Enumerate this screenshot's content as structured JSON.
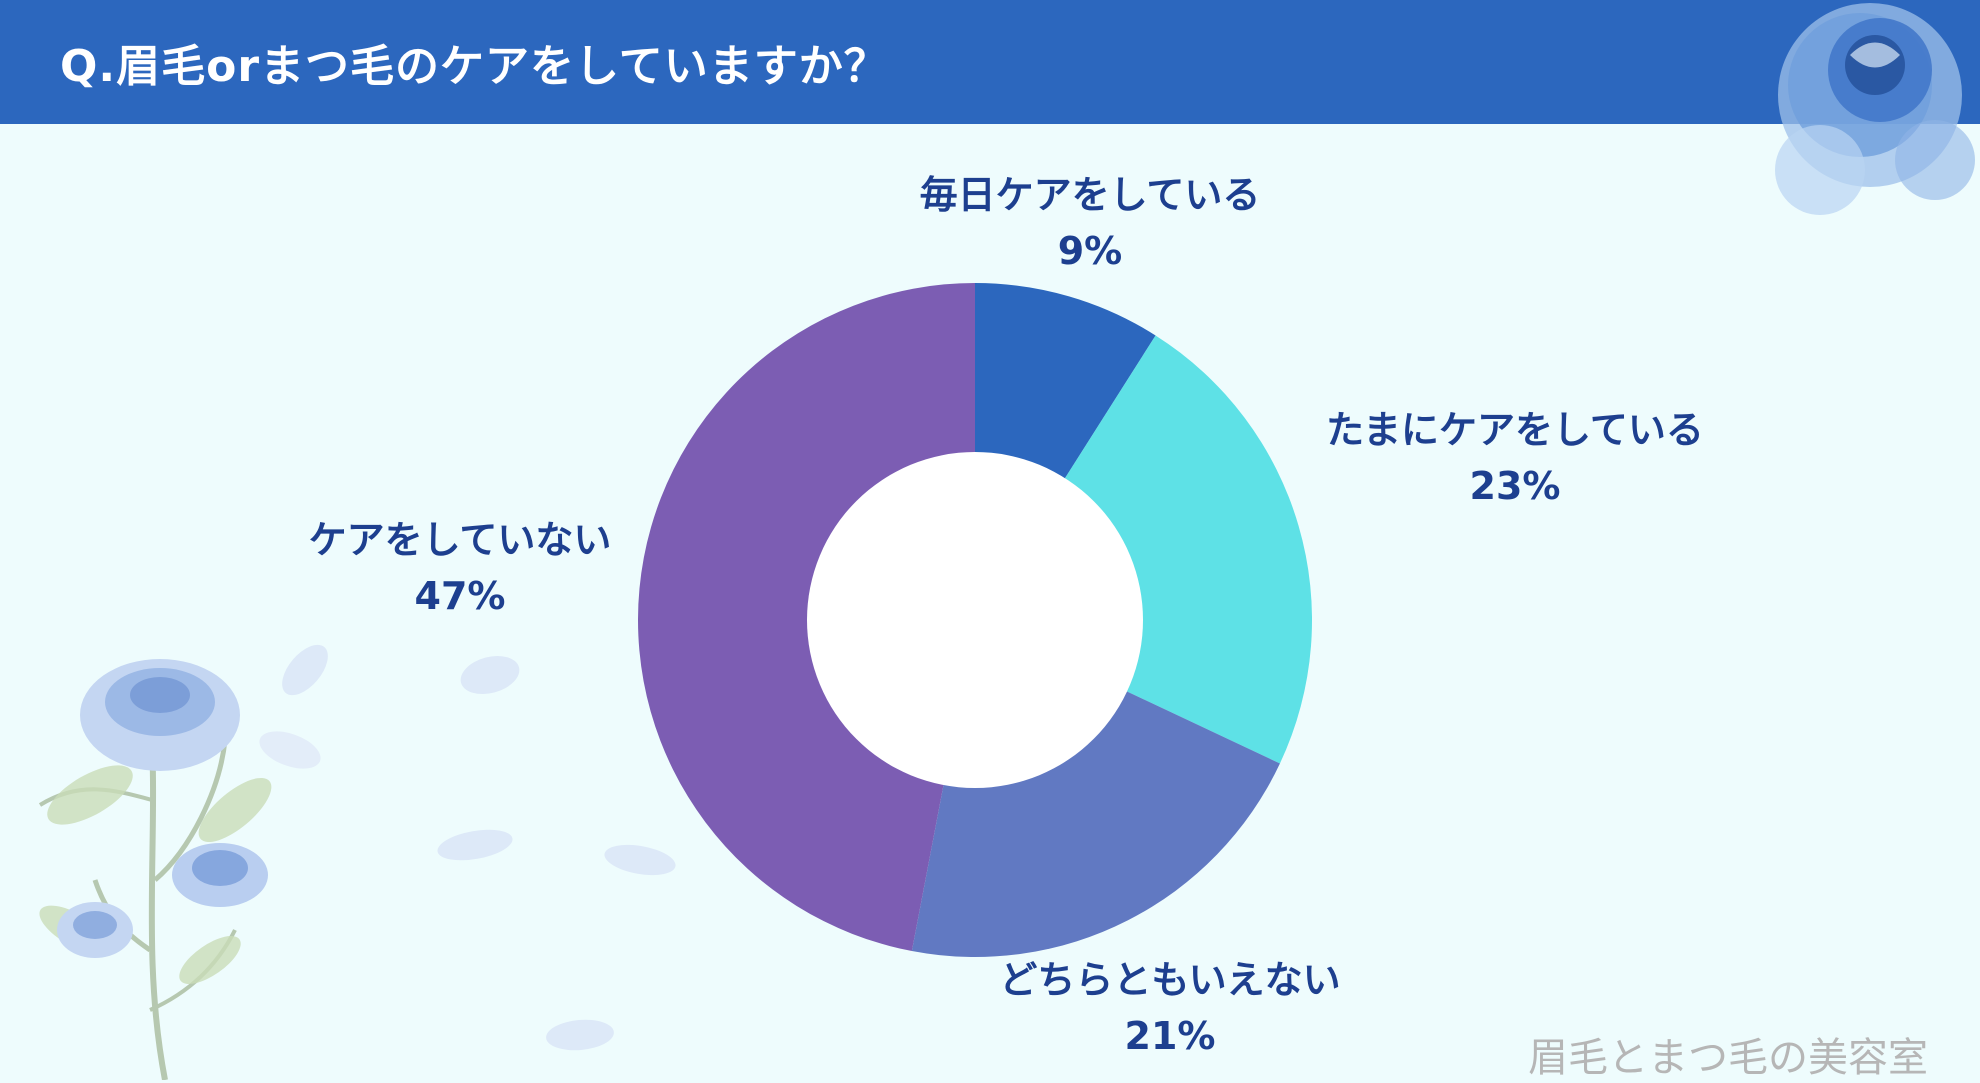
{
  "header": {
    "title": "Q.眉毛orまつ毛のケアをしていますか？"
  },
  "colors": {
    "title_bar": "#2c67be",
    "background": "#eefcfd",
    "label_text": "#1d3f8f"
  },
  "chart_data": {
    "type": "pie",
    "variant": "donut",
    "title": "Q.眉毛orまつ毛のケアをしていますか？",
    "categories": [
      "毎日ケアをしている",
      "たまにケアをしている",
      "どちらともいえない",
      "ケアをしていない"
    ],
    "values": [
      9,
      23,
      21,
      47
    ],
    "value_labels": [
      "9%",
      "23%",
      "21%",
      "47%"
    ],
    "unit": "%",
    "colors": [
      "#2c67be",
      "#5ee1e6",
      "#6179c2",
      "#7c5db3"
    ],
    "legend": "none",
    "labels": "outside"
  },
  "watermark": "眉毛とまつ毛の美容室",
  "decorations": [
    "blue-rose-corner-image",
    "blue-rose-stem-image",
    "petals-image"
  ]
}
